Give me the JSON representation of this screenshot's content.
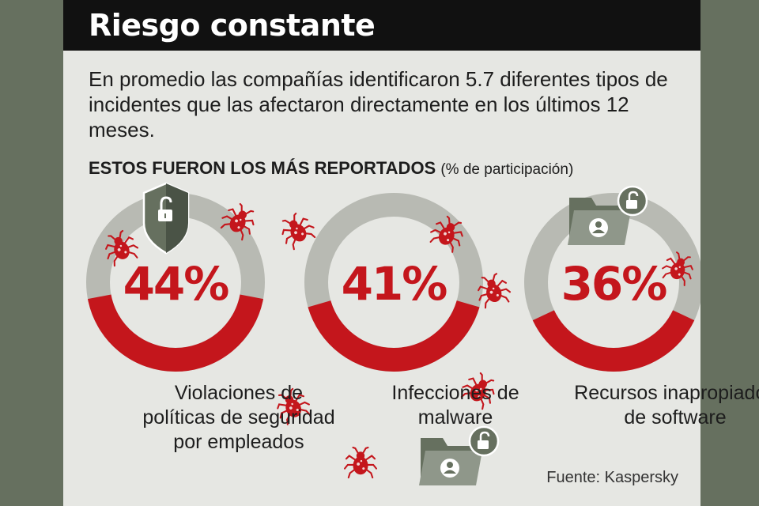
{
  "title": "Riesgo constante",
  "intro": "En promedio las compañías identificaron 5.7 diferentes tipos de incidentes que las afectaron directamente en los últimos 12 meses.",
  "subheading": {
    "bold": "ESTOS FUERON LOS MÁS REPORTADOS",
    "note": "(% de participación)"
  },
  "source": "Fuente: Kaspersky",
  "colors": {
    "accent": "#c4161c",
    "track": "#b8bab3",
    "title_bg": "#111111",
    "card": "#e6e7e3",
    "background": "#66705f"
  },
  "icons": [
    "shield-lock-icon",
    "folder-user-lock-icon",
    "bug-icon"
  ],
  "chart_data": {
    "type": "pie",
    "items": [
      {
        "value": 44,
        "label_text": "44%",
        "category": "Violaciones de políticas de seguridad por empleados"
      },
      {
        "value": 41,
        "label_text": "41%",
        "category": "Infecciones de malware"
      },
      {
        "value": 36,
        "label_text": "36%",
        "category": "Recursos inapropiados de software"
      }
    ]
  }
}
